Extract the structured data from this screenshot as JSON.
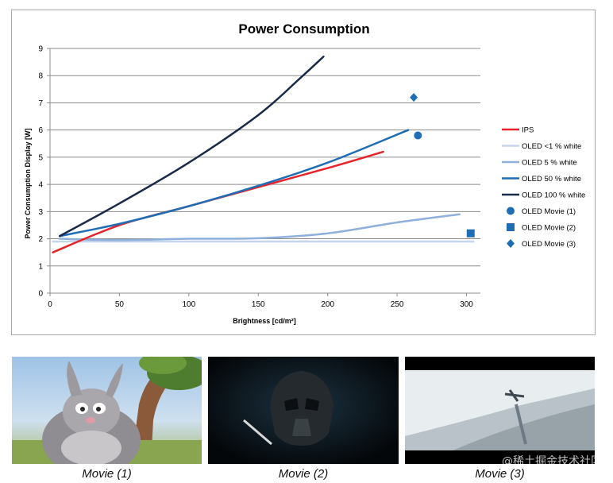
{
  "chart_data": {
    "type": "line",
    "title": "Power Consumption",
    "xlabel": "Brightness [cd/m²]",
    "ylabel": "Power Consumption Display [W]",
    "xlim": [
      0,
      310
    ],
    "ylim": [
      0,
      9
    ],
    "xticks": [
      0,
      50,
      100,
      150,
      200,
      250,
      300
    ],
    "yticks": [
      0,
      1,
      2,
      3,
      4,
      5,
      6,
      7,
      8,
      9
    ],
    "grid": "horizontal",
    "legend_position": "right",
    "series": [
      {
        "name": "IPS",
        "kind": "line",
        "color": "#e8232a",
        "x": [
          2,
          50,
          100,
          150,
          200,
          240
        ],
        "y": [
          1.5,
          2.5,
          3.2,
          3.9,
          4.6,
          5.2
        ]
      },
      {
        "name": "OLED <1 % white",
        "kind": "line",
        "color": "#c5d5ea",
        "x": [
          2,
          100,
          200,
          305
        ],
        "y": [
          1.9,
          1.9,
          1.9,
          1.9
        ]
      },
      {
        "name": "OLED 5 % white",
        "kind": "line",
        "color": "#8eb0db",
        "x": [
          7,
          50,
          100,
          150,
          200,
          250,
          295
        ],
        "y": [
          2.0,
          1.95,
          2.0,
          2.02,
          2.2,
          2.6,
          2.9
        ]
      },
      {
        "name": "OLED 50 % white",
        "kind": "line",
        "color": "#1f6eb5",
        "x": [
          7,
          50,
          100,
          150,
          200,
          258
        ],
        "y": [
          2.1,
          2.55,
          3.2,
          3.95,
          4.8,
          6.0
        ]
      },
      {
        "name": "OLED 100 % white",
        "kind": "line",
        "color": "#1a2b4a",
        "x": [
          7,
          50,
          100,
          150,
          180,
          197
        ],
        "y": [
          2.1,
          3.3,
          4.8,
          6.55,
          7.9,
          8.7
        ]
      },
      {
        "name": "OLED Movie (1)",
        "kind": "marker",
        "marker": "circle",
        "color": "#1f6eb5",
        "x": [
          265
        ],
        "y": [
          5.8
        ]
      },
      {
        "name": "OLED Movie (2)",
        "kind": "marker",
        "marker": "square",
        "color": "#1f6eb5",
        "x": [
          303
        ],
        "y": [
          2.2
        ]
      },
      {
        "name": "OLED Movie (3)",
        "kind": "marker",
        "marker": "diamond",
        "color": "#1f6eb5",
        "x": [
          262
        ],
        "y": [
          7.2
        ]
      }
    ]
  },
  "images": [
    {
      "caption": "Movie (1)",
      "scene": "cartoon-rabbit-forest"
    },
    {
      "caption": "Movie (2)",
      "scene": "dark-helmet"
    },
    {
      "caption": "Movie (3)",
      "scene": "bright-sky-aircraft"
    }
  ],
  "watermark": "@稀土掘金技术社区"
}
